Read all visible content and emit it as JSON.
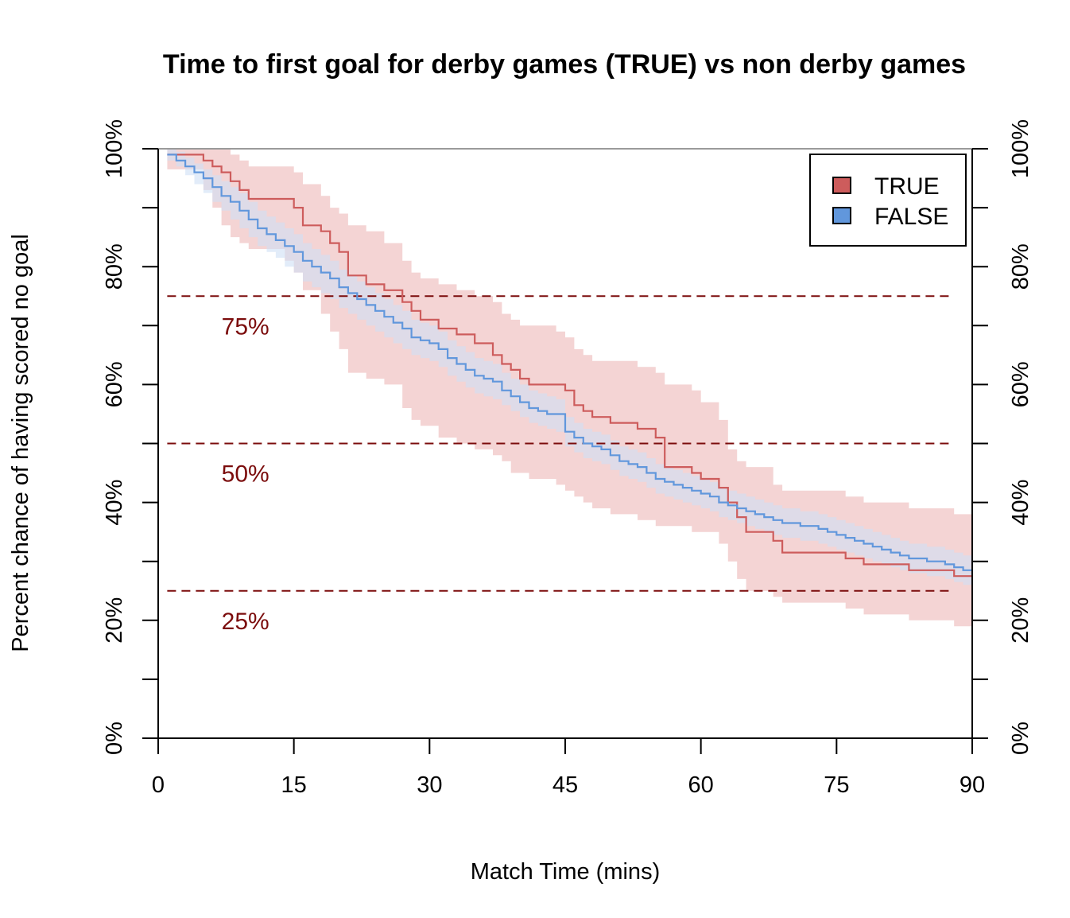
{
  "chart_data": {
    "type": "line",
    "title": "Time to first goal for derby games (TRUE) vs non derby games",
    "xlabel": "Match Time (mins)",
    "ylabel": "Percent chance of having scored no goal",
    "xlim": [
      0,
      90
    ],
    "ylim": [
      0,
      100
    ],
    "x_ticks": [
      0,
      15,
      30,
      45,
      60,
      75,
      90
    ],
    "x_tick_labels": [
      "0",
      "15",
      "30",
      "45",
      "60",
      "75",
      "90"
    ],
    "y_ticks": [
      0,
      10,
      20,
      30,
      40,
      50,
      60,
      70,
      80,
      90,
      100
    ],
    "y_tick_labels": [
      "0%",
      "",
      "20%",
      "",
      "40%",
      "",
      "60%",
      "",
      "80%",
      "",
      "100%"
    ],
    "reference_lines": [
      {
        "y": 75,
        "label": "75%"
      },
      {
        "y": 50,
        "label": "50%"
      },
      {
        "y": 25,
        "label": "25%"
      }
    ],
    "reference_color": "#7b0c0c",
    "legend": {
      "position": "top-right",
      "entries": [
        "TRUE",
        "FALSE"
      ]
    },
    "series": [
      {
        "name": "TRUE",
        "color": "#cd5c5c",
        "band_color": "#f2cccc",
        "step": true,
        "x": [
          1,
          5,
          6,
          7,
          8,
          9,
          10,
          14,
          15,
          16,
          18,
          19,
          20,
          21,
          23,
          25,
          27,
          28,
          29,
          31,
          33,
          35,
          37,
          38,
          39,
          40,
          41,
          44,
          45,
          46,
          47,
          48,
          50,
          53,
          55,
          56,
          59,
          60,
          62,
          63,
          64,
          65,
          68,
          69,
          76,
          78,
          83,
          88,
          90
        ],
        "y": [
          99,
          98,
          97,
          96,
          94.5,
          93,
          91.5,
          91.5,
          90,
          87,
          86,
          84,
          82.5,
          78.5,
          77,
          76,
          74,
          72.5,
          71,
          69.5,
          68.5,
          67,
          65,
          63.5,
          62.5,
          61,
          60,
          60,
          59,
          56.5,
          55.5,
          54.5,
          53.5,
          52.5,
          51,
          46,
          45,
          44,
          42.5,
          40,
          37.5,
          35,
          33.5,
          31.5,
          30.5,
          29.5,
          28.5,
          27.5,
          27.5
        ],
        "lower": [
          96.5,
          93,
          90,
          87,
          85,
          84,
          83,
          81,
          79,
          76,
          72,
          69,
          66,
          62,
          61,
          60,
          56,
          54,
          53,
          51,
          50,
          49,
          48,
          47,
          45,
          45,
          44,
          43,
          42,
          41,
          40,
          39,
          38,
          37,
          36,
          36,
          35,
          35,
          33,
          30,
          27,
          25,
          24,
          23,
          22,
          21,
          20,
          19,
          18
        ],
        "upper": [
          100,
          100,
          100,
          100,
          99,
          98,
          97,
          97,
          96,
          94,
          92,
          90,
          89,
          87,
          86,
          84,
          81,
          79,
          78,
          77,
          76,
          75,
          74,
          72,
          71,
          70,
          70,
          69,
          68,
          66,
          65,
          64,
          64,
          63,
          62,
          60,
          59,
          57,
          54,
          49,
          47,
          46,
          43,
          42,
          41,
          40,
          39,
          38,
          37
        ]
      },
      {
        "name": "FALSE",
        "color": "#6197dc",
        "band_color": "#cfe0f5",
        "step": true,
        "x": [
          1,
          2,
          3,
          4,
          5,
          6,
          7,
          8,
          9,
          10,
          11,
          12,
          13,
          14,
          15,
          16,
          17,
          18,
          19,
          20,
          21,
          22,
          23,
          24,
          25,
          26,
          27,
          28,
          29,
          30,
          31,
          32,
          33,
          34,
          35,
          36,
          37,
          38,
          39,
          40,
          41,
          42,
          43,
          44,
          45,
          46,
          47,
          48,
          49,
          50,
          51,
          52,
          53,
          54,
          55,
          56,
          57,
          58,
          59,
          60,
          61,
          62,
          63,
          64,
          65,
          66,
          67,
          68,
          69,
          70,
          71,
          72,
          73,
          74,
          75,
          76,
          77,
          78,
          79,
          80,
          81,
          82,
          83,
          84,
          85,
          86,
          87,
          88,
          89,
          90
        ],
        "y": [
          99,
          98,
          97,
          96,
          95,
          93.5,
          92,
          91,
          89.5,
          88,
          86.5,
          85.5,
          84.5,
          83.5,
          82.5,
          81,
          80,
          79,
          78,
          76.5,
          75.5,
          74.5,
          73.5,
          72.5,
          71.5,
          70.5,
          69.5,
          68,
          67.5,
          67,
          66,
          64.5,
          63.5,
          62.5,
          61.5,
          61,
          60.5,
          59,
          58,
          57,
          56,
          55.5,
          55,
          55,
          52,
          51,
          50,
          49.5,
          49,
          48,
          47,
          46.5,
          46,
          45,
          44,
          43.5,
          43,
          42.5,
          42,
          41.5,
          41,
          40,
          39.5,
          39,
          38.5,
          38,
          37.5,
          37,
          36.5,
          36.5,
          36,
          36,
          35.5,
          35,
          34.5,
          34,
          33.5,
          33,
          32.5,
          32,
          31.5,
          31,
          30.5,
          30.5,
          30,
          30,
          29.5,
          29,
          28.5,
          28.5
        ],
        "lower": [
          98,
          97,
          95.5,
          94,
          92.5,
          91,
          89.5,
          88,
          86.5,
          85,
          83.5,
          82.5,
          81.5,
          80,
          79,
          77.5,
          76.5,
          75.5,
          74.5,
          73,
          72,
          71,
          70,
          69,
          68,
          67,
          66,
          65,
          64.5,
          64,
          63,
          61.5,
          60.5,
          59.5,
          58.5,
          58,
          57.5,
          56.5,
          55.5,
          54.5,
          53.5,
          53,
          52.5,
          52,
          49.5,
          48.5,
          47.5,
          47,
          46.5,
          45.5,
          44.5,
          44,
          43.5,
          42.5,
          41.5,
          41,
          40.5,
          40,
          39.5,
          39,
          38.5,
          37.5,
          37,
          36.5,
          36,
          35.5,
          35,
          34.5,
          34,
          34,
          33.5,
          33.5,
          33,
          32.5,
          32,
          31.5,
          31,
          30.5,
          30,
          29.5,
          29,
          28.5,
          28,
          28,
          27.5,
          27.5,
          27,
          26.5,
          26,
          25.5
        ],
        "upper": [
          100,
          99.5,
          98.5,
          97.5,
          96.5,
          95.5,
          94.5,
          93.5,
          92.5,
          91,
          89.5,
          88.5,
          87.5,
          86.5,
          85.5,
          84,
          83,
          82,
          81,
          79.5,
          78.5,
          77.5,
          76.5,
          75.5,
          74.5,
          73.5,
          72.5,
          71,
          70.5,
          70,
          69,
          67.5,
          66.5,
          65.5,
          64.5,
          64,
          63.5,
          62,
          61,
          60,
          59,
          58.5,
          58,
          57.5,
          54.5,
          53.5,
          52.5,
          52,
          51.5,
          50.5,
          49.5,
          49,
          48.5,
          47.5,
          46.5,
          46,
          45.5,
          45,
          44.5,
          44,
          43.5,
          42.5,
          42,
          41.5,
          41,
          40.5,
          40,
          39.5,
          39,
          39,
          38.5,
          38.5,
          38,
          37.5,
          37,
          36.5,
          36,
          35.5,
          35,
          34.5,
          34,
          33.5,
          33,
          33,
          32.5,
          32.5,
          32,
          31.5,
          31,
          31
        ]
      }
    ],
    "grid": false
  }
}
